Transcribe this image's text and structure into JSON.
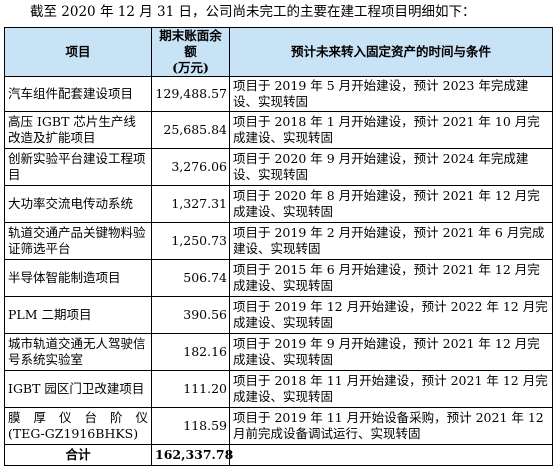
{
  "intro": "截至 2020 年 12 月 31 日，公司尚未完工的主要在建工程项目明细如下：",
  "table": {
    "headers": {
      "project": "项目",
      "balance_line1": "期末账面余额",
      "balance_line2": "(万元)",
      "condition": "预计未来转入固定资产的时间与条件"
    },
    "rows": [
      {
        "name": "汽车组件配套建设项目",
        "amount": "129,488.57",
        "condition": "项目于 2019 年 5 月开始建设，预计 2023 年完成建设、实现转固"
      },
      {
        "name": "高压 IGBT 芯片生产线改造及扩能项目",
        "amount": "25,685.84",
        "condition": "项目于 2018 年 1 月开始建设，预计 2021 年 10 月完成建设、实现转固"
      },
      {
        "name": "创新实验平台建设工程项目",
        "amount": "3,276.06",
        "condition": "项目于 2020 年 9 月开始建设，预计 2024 年完成建设、实现转固"
      },
      {
        "name": "大功率交流电传动系统",
        "amount": "1,327.31",
        "condition": "项目于 2020 年 8 月开始建设，预计 2021 年 12 月完成建设、实现转固"
      },
      {
        "name": "轨道交通产品关键物料验证筛选平台",
        "amount": "1,250.73",
        "condition": "项目于 2019 年 2 月开始建设，预计 2021 年 6 月完成建设、实现转固"
      },
      {
        "name": "半导体智能制造项目",
        "amount": "506.74",
        "condition": "项目于 2015 年 6 月开始建设，预计 2021 年 12 月完成建设、实现转固"
      },
      {
        "name": "PLM 二期项目",
        "amount": "390.56",
        "condition": "项目于 2019 年 12 月开始建设，预计 2022 年 12 月完成建设、实现转固"
      },
      {
        "name": "城市轨道交通无人驾驶信号系统实验室",
        "amount": "182.16",
        "condition": "项目于 2019 年 9 月开始建设，预计 2021 年 12 月完成建设、实现转固"
      },
      {
        "name": "IGBT 园区门卫改建项目",
        "amount": "111.20",
        "condition": "项目于 2018 年 11 月开始建设，预计 2021 年 12 月完成建设、实现转固"
      },
      {
        "name": "膜厚仪台阶仪 (TEG-GZ1916BHKS)",
        "name_line1": "膜厚仪台阶仪",
        "name_line2": "(TEG-GZ1916BHKS)",
        "amount": "118.59",
        "condition": "项目于 2019 年 11 月开始设备采购，预计 2021 年 12 月前完成设备调试运行、实现转固"
      }
    ],
    "total": {
      "label": "合计",
      "amount": "162,337.78"
    }
  }
}
